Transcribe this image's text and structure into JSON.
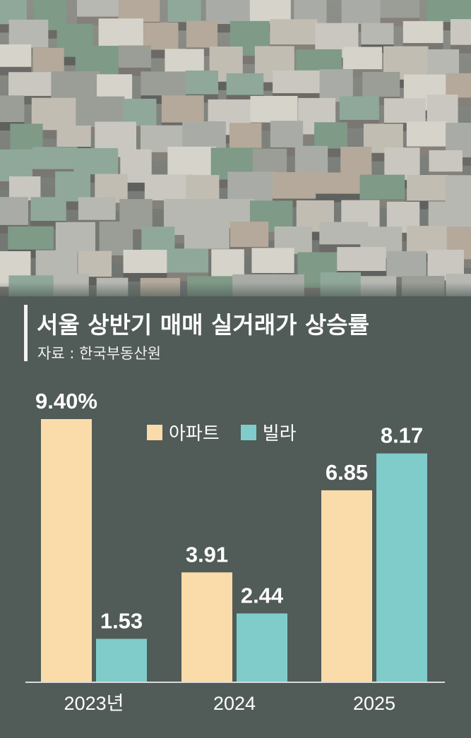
{
  "title": "서울 상반기 매매 실거래가 상승률",
  "source": "자료 : 한국부동산원",
  "colors": {
    "background": "#515b58",
    "apartment": "#fadcaa",
    "villa": "#7fcccb",
    "axis": "#d9d9d9",
    "text": "#ffffff"
  },
  "chart_data": {
    "type": "bar",
    "title": "서울 상반기 매매 실거래가 상승률",
    "categories": [
      "2023년",
      "2024",
      "2025"
    ],
    "series": [
      {
        "name": "아파트",
        "values": [
          9.4,
          3.91,
          6.85
        ],
        "labels": [
          "9.40%",
          "3.91",
          "6.85"
        ]
      },
      {
        "name": "빌라",
        "values": [
          1.53,
          2.44,
          8.17
        ],
        "labels": [
          "1.53",
          "2.44",
          "8.17"
        ]
      }
    ],
    "ylim": [
      0,
      9.4
    ],
    "xlabel": "",
    "ylabel": "",
    "grid": false,
    "legend": "top-center"
  }
}
